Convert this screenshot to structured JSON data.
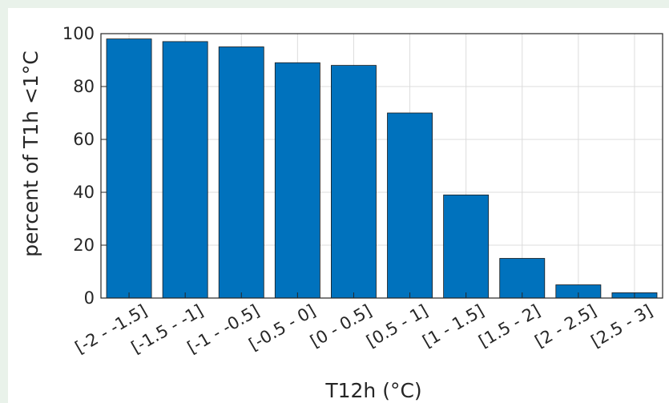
{
  "chart_data": {
    "type": "bar",
    "categories": [
      "[-2 - -1.5]",
      "[-1.5 - -1]",
      "[-1 - -0.5]",
      "[-0.5 - 0]",
      "[0 - 0.5]",
      "[0.5 - 1]",
      "[1 - 1.5]",
      "[1.5 - 2]",
      "[2 - 2.5]",
      "[2.5 - 3]"
    ],
    "values": [
      98,
      97,
      95,
      89,
      88,
      70,
      39,
      15,
      5,
      2
    ],
    "xlabel": "T12h (°C)",
    "ylabel": "percent of T1h <1°C",
    "ylim": [
      0,
      100
    ],
    "yticks": [
      0,
      20,
      40,
      60,
      80,
      100
    ],
    "grid": true,
    "bar_color": "#0072bd"
  }
}
